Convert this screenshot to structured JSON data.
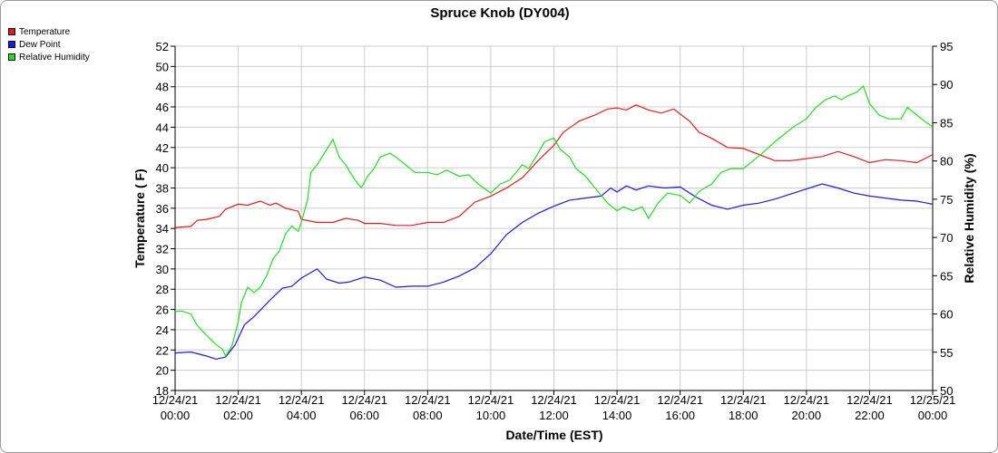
{
  "chart_data": {
    "type": "line",
    "title": "Spruce Knob (DY004)",
    "xlabel": "Date/Time (EST)",
    "ylabel_left": "Temperature ( F)",
    "ylabel_right": "Relative Humidity (%)",
    "xlim": [
      0,
      24
    ],
    "ylim_left": [
      18,
      52
    ],
    "ylim_right": [
      50,
      95
    ],
    "y_ticks_left": [
      18,
      20,
      22,
      24,
      26,
      28,
      30,
      32,
      34,
      36,
      38,
      40,
      42,
      44,
      46,
      48,
      50,
      52
    ],
    "y_ticks_right": [
      50,
      55,
      60,
      65,
      70,
      75,
      80,
      85,
      90,
      95
    ],
    "x_ticks": [
      {
        "x": 0,
        "date": "12/24/21",
        "time": "00:00"
      },
      {
        "x": 2,
        "date": "12/24/21",
        "time": "02:00"
      },
      {
        "x": 4,
        "date": "12/24/21",
        "time": "04:00"
      },
      {
        "x": 6,
        "date": "12/24/21",
        "time": "06:00"
      },
      {
        "x": 8,
        "date": "12/24/21",
        "time": "08:00"
      },
      {
        "x": 10,
        "date": "12/24/21",
        "time": "10:00"
      },
      {
        "x": 12,
        "date": "12/24/21",
        "time": "12:00"
      },
      {
        "x": 14,
        "date": "12/24/21",
        "time": "14:00"
      },
      {
        "x": 16,
        "date": "12/24/21",
        "time": "16:00"
      },
      {
        "x": 18,
        "date": "12/24/21",
        "time": "18:00"
      },
      {
        "x": 20,
        "date": "12/24/21",
        "time": "20:00"
      },
      {
        "x": 22,
        "date": "12/24/21",
        "time": "22:00"
      },
      {
        "x": 24,
        "date": "12/25/21",
        "time": "00:00"
      }
    ],
    "grid": true,
    "legend_position": "top-left",
    "series": [
      {
        "name": "Temperature",
        "color": "#e41a1a",
        "axis": "left",
        "points": [
          [
            0,
            34.1
          ],
          [
            0.5,
            34.2
          ],
          [
            0.7,
            34.8
          ],
          [
            1,
            34.9
          ],
          [
            1.4,
            35.2
          ],
          [
            1.6,
            35.9
          ],
          [
            2,
            36.4
          ],
          [
            2.3,
            36.3
          ],
          [
            2.7,
            36.7
          ],
          [
            3,
            36.3
          ],
          [
            3.2,
            36.5
          ],
          [
            3.5,
            36.0
          ],
          [
            3.9,
            35.7
          ],
          [
            4,
            34.9
          ],
          [
            4.5,
            34.6
          ],
          [
            5,
            34.6
          ],
          [
            5.4,
            35.0
          ],
          [
            5.8,
            34.8
          ],
          [
            6,
            34.5
          ],
          [
            6.5,
            34.5
          ],
          [
            7,
            34.3
          ],
          [
            7.5,
            34.3
          ],
          [
            8,
            34.6
          ],
          [
            8.5,
            34.6
          ],
          [
            9,
            35.2
          ],
          [
            9.5,
            36.6
          ],
          [
            10,
            37.2
          ],
          [
            10.5,
            38.0
          ],
          [
            11,
            39.0
          ],
          [
            11.5,
            40.7
          ],
          [
            12,
            42.2
          ],
          [
            12.3,
            43.5
          ],
          [
            12.8,
            44.6
          ],
          [
            13.3,
            45.2
          ],
          [
            13.7,
            45.8
          ],
          [
            14,
            45.9
          ],
          [
            14.3,
            45.7
          ],
          [
            14.6,
            46.2
          ],
          [
            15,
            45.7
          ],
          [
            15.4,
            45.4
          ],
          [
            15.8,
            45.8
          ],
          [
            16,
            45.3
          ],
          [
            16.3,
            44.6
          ],
          [
            16.6,
            43.5
          ],
          [
            17,
            42.9
          ],
          [
            17.5,
            42.0
          ],
          [
            18,
            41.9
          ],
          [
            18.5,
            41.3
          ],
          [
            19,
            40.7
          ],
          [
            19.5,
            40.7
          ],
          [
            20,
            40.9
          ],
          [
            20.5,
            41.1
          ],
          [
            21,
            41.6
          ],
          [
            21.5,
            41.1
          ],
          [
            22,
            40.5
          ],
          [
            22.5,
            40.8
          ],
          [
            23,
            40.7
          ],
          [
            23.5,
            40.5
          ],
          [
            24,
            41.3
          ]
        ]
      },
      {
        "name": "Dew Point",
        "color": "#1a1ae4",
        "axis": "left",
        "points": [
          [
            0,
            21.7
          ],
          [
            0.5,
            21.8
          ],
          [
            1,
            21.4
          ],
          [
            1.3,
            21.1
          ],
          [
            1.6,
            21.3
          ],
          [
            1.9,
            22.5
          ],
          [
            2.2,
            24.5
          ],
          [
            2.5,
            25.3
          ],
          [
            3,
            26.9
          ],
          [
            3.4,
            28.1
          ],
          [
            3.7,
            28.3
          ],
          [
            4,
            29.1
          ],
          [
            4.5,
            30.0
          ],
          [
            4.8,
            29.0
          ],
          [
            5.2,
            28.6
          ],
          [
            5.5,
            28.7
          ],
          [
            6,
            29.2
          ],
          [
            6.5,
            28.9
          ],
          [
            7,
            28.2
          ],
          [
            7.5,
            28.3
          ],
          [
            8,
            28.3
          ],
          [
            8.5,
            28.7
          ],
          [
            9,
            29.3
          ],
          [
            9.5,
            30.1
          ],
          [
            10,
            31.5
          ],
          [
            10.5,
            33.4
          ],
          [
            11,
            34.6
          ],
          [
            11.5,
            35.5
          ],
          [
            12,
            36.2
          ],
          [
            12.5,
            36.8
          ],
          [
            13,
            37.0
          ],
          [
            13.5,
            37.2
          ],
          [
            13.8,
            38.0
          ],
          [
            14,
            37.6
          ],
          [
            14.3,
            38.2
          ],
          [
            14.6,
            37.8
          ],
          [
            15,
            38.2
          ],
          [
            15.5,
            38.0
          ],
          [
            16,
            38.1
          ],
          [
            16.5,
            37.1
          ],
          [
            17,
            36.3
          ],
          [
            17.5,
            35.9
          ],
          [
            18,
            36.3
          ],
          [
            18.5,
            36.5
          ],
          [
            19,
            36.9
          ],
          [
            19.5,
            37.4
          ],
          [
            20,
            37.9
          ],
          [
            20.5,
            38.4
          ],
          [
            21,
            38.0
          ],
          [
            21.5,
            37.5
          ],
          [
            22,
            37.2
          ],
          [
            22.5,
            37.0
          ],
          [
            23,
            36.8
          ],
          [
            23.5,
            36.7
          ],
          [
            24,
            36.4
          ]
        ]
      },
      {
        "name": "Relative Humidity",
        "color": "#22dd22",
        "axis": "right",
        "points": [
          [
            0,
            60.3
          ],
          [
            0.2,
            60.4
          ],
          [
            0.5,
            60.0
          ],
          [
            0.7,
            58.5
          ],
          [
            1,
            57.2
          ],
          [
            1.3,
            56.0
          ],
          [
            1.5,
            55.4
          ],
          [
            1.6,
            54.5
          ],
          [
            1.8,
            55.8
          ],
          [
            2,
            59.0
          ],
          [
            2.1,
            61.5
          ],
          [
            2.3,
            63.5
          ],
          [
            2.5,
            62.8
          ],
          [
            2.7,
            63.5
          ],
          [
            2.9,
            65.0
          ],
          [
            3.1,
            67.2
          ],
          [
            3.3,
            68.2
          ],
          [
            3.5,
            70.5
          ],
          [
            3.7,
            71.5
          ],
          [
            3.9,
            70.8
          ],
          [
            4,
            72.0
          ],
          [
            4.2,
            75.0
          ],
          [
            4.3,
            78.5
          ],
          [
            4.5,
            79.5
          ],
          [
            4.8,
            81.5
          ],
          [
            5,
            82.8
          ],
          [
            5.2,
            80.5
          ],
          [
            5.4,
            79.5
          ],
          [
            5.7,
            77.5
          ],
          [
            5.9,
            76.5
          ],
          [
            6.1,
            78.0
          ],
          [
            6.3,
            79.0
          ],
          [
            6.5,
            80.5
          ],
          [
            6.8,
            81.0
          ],
          [
            7,
            80.5
          ],
          [
            7.3,
            79.5
          ],
          [
            7.6,
            78.5
          ],
          [
            8,
            78.5
          ],
          [
            8.3,
            78.2
          ],
          [
            8.6,
            78.8
          ],
          [
            9,
            78.0
          ],
          [
            9.3,
            78.2
          ],
          [
            9.6,
            77.0
          ],
          [
            10,
            75.8
          ],
          [
            10.3,
            77.0
          ],
          [
            10.6,
            77.5
          ],
          [
            11,
            79.5
          ],
          [
            11.2,
            79.0
          ],
          [
            11.5,
            81.0
          ],
          [
            11.7,
            82.5
          ],
          [
            12,
            83.0
          ],
          [
            12.2,
            81.5
          ],
          [
            12.5,
            80.5
          ],
          [
            12.7,
            79.0
          ],
          [
            13,
            78.0
          ],
          [
            13.3,
            76.5
          ],
          [
            13.5,
            75.5
          ],
          [
            13.7,
            74.5
          ],
          [
            14,
            73.5
          ],
          [
            14.2,
            74.0
          ],
          [
            14.5,
            73.5
          ],
          [
            14.8,
            74.0
          ],
          [
            15,
            72.5
          ],
          [
            15.3,
            74.5
          ],
          [
            15.6,
            75.8
          ],
          [
            16,
            75.5
          ],
          [
            16.3,
            74.5
          ],
          [
            16.6,
            76.0
          ],
          [
            17,
            77.0
          ],
          [
            17.3,
            78.5
          ],
          [
            17.6,
            79.0
          ],
          [
            18,
            79.0
          ],
          [
            18.3,
            80.0
          ],
          [
            18.6,
            81.0
          ],
          [
            19,
            82.5
          ],
          [
            19.3,
            83.5
          ],
          [
            19.6,
            84.5
          ],
          [
            20,
            85.5
          ],
          [
            20.3,
            87.0
          ],
          [
            20.6,
            88.0
          ],
          [
            20.9,
            88.5
          ],
          [
            21.1,
            88.0
          ],
          [
            21.3,
            88.5
          ],
          [
            21.6,
            89.0
          ],
          [
            21.8,
            89.8
          ],
          [
            22,
            87.5
          ],
          [
            22.3,
            86.0
          ],
          [
            22.6,
            85.5
          ],
          [
            23,
            85.5
          ],
          [
            23.2,
            87.0
          ],
          [
            23.5,
            86.0
          ],
          [
            23.8,
            85.0
          ],
          [
            24,
            84.5
          ],
          [
            24.2,
            86.0
          ],
          [
            24.5,
            85.5
          ],
          [
            24.8,
            84.5
          ],
          [
            25,
            83.0
          ]
        ]
      }
    ]
  }
}
